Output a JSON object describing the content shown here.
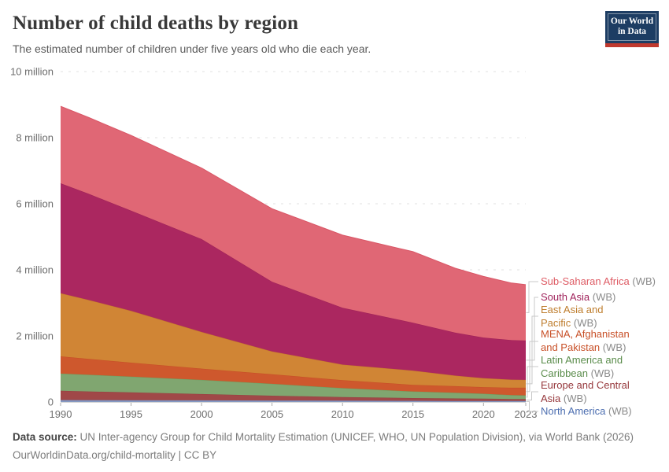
{
  "header": {
    "title": "Number of child deaths by region",
    "subtitle": "The estimated number of children under five years old who die each year.",
    "logo": {
      "line1": "Our World",
      "line2": "in Data",
      "bg": "#1D3D63",
      "bar": "#C0392E"
    }
  },
  "chart_data": {
    "type": "area",
    "stacked": true,
    "title": "Number of child deaths by region",
    "xlabel": "",
    "ylabel": "",
    "xlim": [
      1990,
      2023
    ],
    "ylim": [
      0,
      10
    ],
    "grid": "dashed-horizontal",
    "legend_position": "right",
    "units": "million",
    "x": [
      1990,
      1992,
      1995,
      2000,
      2005,
      2010,
      2015,
      2018,
      2020,
      2022,
      2023
    ],
    "xticks": [
      1990,
      1995,
      2000,
      2005,
      2010,
      2015,
      2020,
      2023
    ],
    "yticks": [
      {
        "value": 0,
        "label": "0"
      },
      {
        "value": 2,
        "label": "2 million"
      },
      {
        "value": 4,
        "label": "4 million"
      },
      {
        "value": 6,
        "label": "6 million"
      },
      {
        "value": 8,
        "label": "8 million"
      },
      {
        "value": 10,
        "label": "10 million"
      }
    ],
    "series": [
      {
        "name": "north-america",
        "label": "North America",
        "wb": "(WB)",
        "color": "#8599C2",
        "stroke": "#7289B8",
        "text_color": "#4C6EB0",
        "values": [
          0.06,
          0.058,
          0.055,
          0.05,
          0.045,
          0.04,
          0.035,
          0.032,
          0.03,
          0.028,
          0.028
        ]
      },
      {
        "name": "europe-central-asia",
        "label": "Europe and Central Asia",
        "wb": "(WB)",
        "color": "#A04848",
        "stroke": "#944040",
        "text_color": "#96383C",
        "values": [
          0.28,
          0.262,
          0.235,
          0.19,
          0.145,
          0.11,
          0.085,
          0.076,
          0.07,
          0.063,
          0.062
        ]
      },
      {
        "name": "latin-america-caribbean",
        "label": "Latin America and Caribbean",
        "wb": "(WB)",
        "color": "#80A670",
        "stroke": "#6F9B5E",
        "text_color": "#5A8C4B",
        "values": [
          0.52,
          0.505,
          0.48,
          0.43,
          0.36,
          0.27,
          0.2,
          0.17,
          0.15,
          0.115,
          0.11
        ]
      },
      {
        "name": "mena-afghanistan-pakistan",
        "label": "MENA, Afghanistan and Pakistan",
        "wb": "(WB)",
        "color": "#CE582D",
        "stroke": "#C54E26",
        "text_color": "#C85028",
        "values": [
          0.52,
          0.48,
          0.42,
          0.34,
          0.29,
          0.24,
          0.2,
          0.2,
          0.2,
          0.225,
          0.23
        ]
      },
      {
        "name": "east-asia-pacific",
        "label": "East Asia and Pacific",
        "wb": "(WB)",
        "color": "#D08535",
        "stroke": "#C57A2B",
        "text_color": "#BE7D2D",
        "values": [
          1.91,
          1.78,
          1.57,
          1.11,
          0.69,
          0.47,
          0.43,
          0.32,
          0.27,
          0.245,
          0.24
        ]
      },
      {
        "name": "south-asia",
        "label": "South Asia",
        "wb": "(WB)",
        "color": "#AB2760",
        "stroke": "#9E2257",
        "text_color": "#A0235C",
        "values": [
          3.33,
          3.215,
          3.03,
          2.81,
          2.11,
          1.72,
          1.45,
          1.3,
          1.23,
          1.195,
          1.19
        ]
      },
      {
        "name": "sub-saharan-africa",
        "label": "Sub-Saharan Africa",
        "wb": "(WB)",
        "color": "#E06775",
        "stroke": "#D95666",
        "text_color": "#DE5B64",
        "values": [
          2.33,
          2.31,
          2.28,
          2.15,
          2.21,
          2.2,
          2.15,
          1.95,
          1.85,
          1.73,
          1.69
        ]
      }
    ]
  },
  "footer": {
    "source_prefix": "Data source:",
    "source_text": "UN Inter-agency Group for Child Mortality Estimation (UNICEF, WHO, UN Population Division), via World Bank (2026)",
    "note": "OurWorldinData.org/child-mortality | CC BY"
  }
}
